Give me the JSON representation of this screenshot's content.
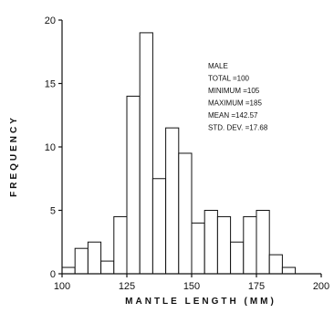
{
  "chart_data": {
    "type": "bar",
    "title": "",
    "xlabel": "MANTLE LENGTH (MM)",
    "ylabel": "FREQUENCY",
    "xlim": [
      100,
      200
    ],
    "ylim": [
      0,
      20
    ],
    "x_ticks": [
      100,
      125,
      150,
      175,
      200
    ],
    "y_ticks": [
      0,
      5,
      10,
      15,
      20
    ],
    "bin_width": 5,
    "bins": [
      {
        "start": 100,
        "value": 0.5
      },
      {
        "start": 105,
        "value": 2
      },
      {
        "start": 110,
        "value": 2.5
      },
      {
        "start": 115,
        "value": 1
      },
      {
        "start": 120,
        "value": 4.5
      },
      {
        "start": 125,
        "value": 14
      },
      {
        "start": 130,
        "value": 19
      },
      {
        "start": 135,
        "value": 7.5
      },
      {
        "start": 140,
        "value": 11.5
      },
      {
        "start": 145,
        "value": 9.5
      },
      {
        "start": 150,
        "value": 4
      },
      {
        "start": 155,
        "value": 5
      },
      {
        "start": 160,
        "value": 4.5
      },
      {
        "start": 165,
        "value": 2.5
      },
      {
        "start": 170,
        "value": 4.5
      },
      {
        "start": 175,
        "value": 5
      },
      {
        "start": 180,
        "value": 1.5
      },
      {
        "start": 185,
        "value": 0.5
      }
    ],
    "annotations": [
      "MALE",
      "TOTAL =100",
      "MINIMUM =105",
      "MAXIMUM =185",
      "MEAN =142.57",
      "STD. DEV. =17.68"
    ],
    "grid": false,
    "legend": "none"
  }
}
